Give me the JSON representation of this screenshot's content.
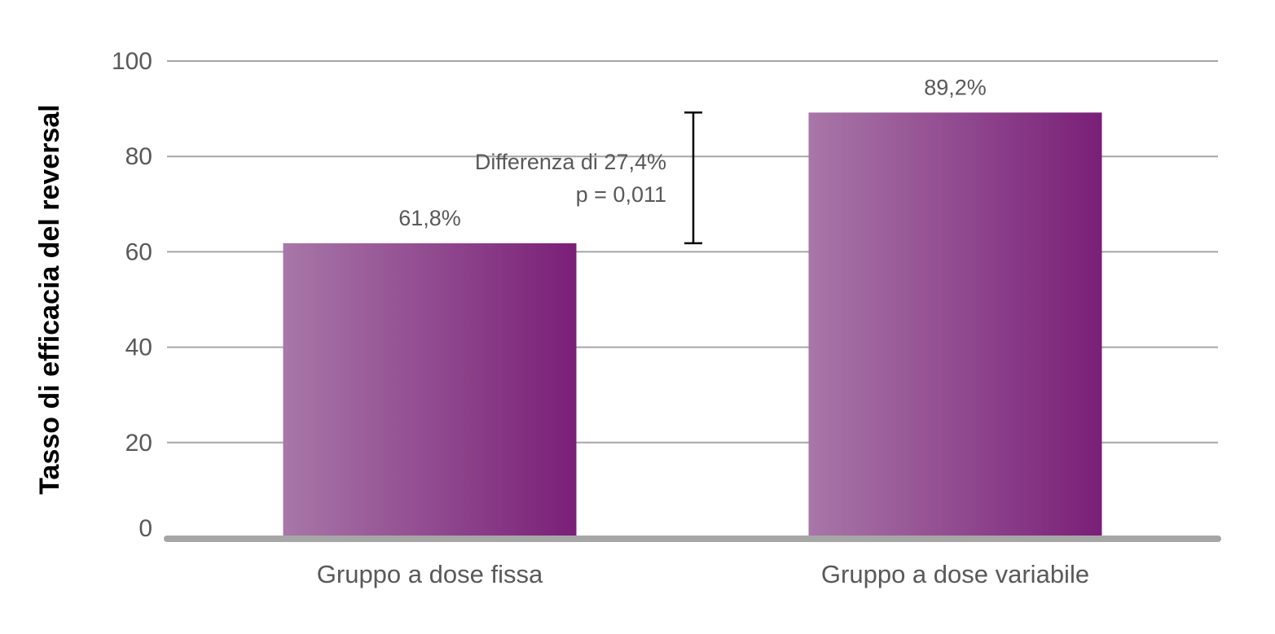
{
  "chart_data": {
    "type": "bar",
    "categories": [
      "Gruppo a dose fissa",
      "Gruppo a dose variabile"
    ],
    "values": [
      61.8,
      89.2
    ],
    "data_labels": [
      "61,8%",
      "89,2%"
    ],
    "ylabel": "Tasso di efficacia del reversal",
    "xlabel": "",
    "ylim": [
      0,
      100
    ],
    "yticks": [
      0,
      20,
      40,
      60,
      80,
      100
    ],
    "grid": true,
    "legend": "none",
    "annotation": {
      "lines": [
        "Differenza di 27,4%",
        "p = 0,011"
      ],
      "range": [
        61.8,
        89.2
      ]
    },
    "colors": {
      "bar_light": "#a877a8",
      "bar_dark": "#7a1f77",
      "grid": "#a6a6a6",
      "text": "#595959"
    }
  }
}
